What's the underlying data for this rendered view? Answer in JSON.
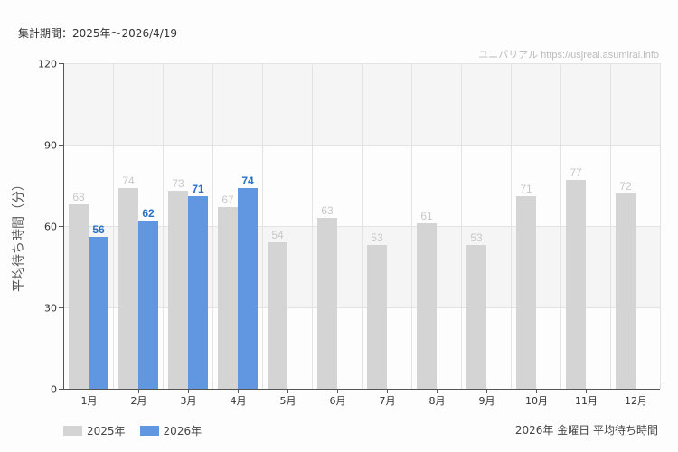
{
  "header": {
    "period": "集計期間：2025年～2026/4/19",
    "credit": "ユニバリアル  https://usjreal.asumirai.info"
  },
  "footer": {
    "subtitle": "2026年 金曜日 平均待ち時間"
  },
  "legend": [
    {
      "label": "2025年",
      "color": "#d3d4d3"
    },
    {
      "label": "2026年",
      "color": "#6196e0"
    }
  ],
  "colors": {
    "series_2025": "#d3d4d3",
    "series_2026": "#6196e0",
    "label_2025": "#c8c8c8",
    "label_2026": "#2a6fca",
    "band": "#f4f5f4",
    "grid": "#e3e3e3",
    "axis": "#555555"
  },
  "chart_data": {
    "type": "bar",
    "title": "2026年 金曜日 平均待ち時間",
    "subtitle": "集計期間：2025年～2026/4/19",
    "xlabel": "",
    "ylabel": "平均待ち時間（分）",
    "ylim": [
      0,
      120
    ],
    "yticks": [
      0,
      30,
      60,
      90,
      120
    ],
    "grid": true,
    "legend_position": "bottom-left",
    "categories": [
      "1月",
      "2月",
      "3月",
      "4月",
      "5月",
      "6月",
      "7月",
      "8月",
      "9月",
      "10月",
      "11月",
      "12月"
    ],
    "series": [
      {
        "name": "2025年",
        "values": [
          68,
          74,
          73,
          67,
          54,
          63,
          53,
          61,
          53,
          71,
          77,
          72
        ]
      },
      {
        "name": "2026年",
        "values": [
          56,
          62,
          71,
          74,
          null,
          null,
          null,
          null,
          null,
          null,
          null,
          null
        ]
      }
    ]
  }
}
